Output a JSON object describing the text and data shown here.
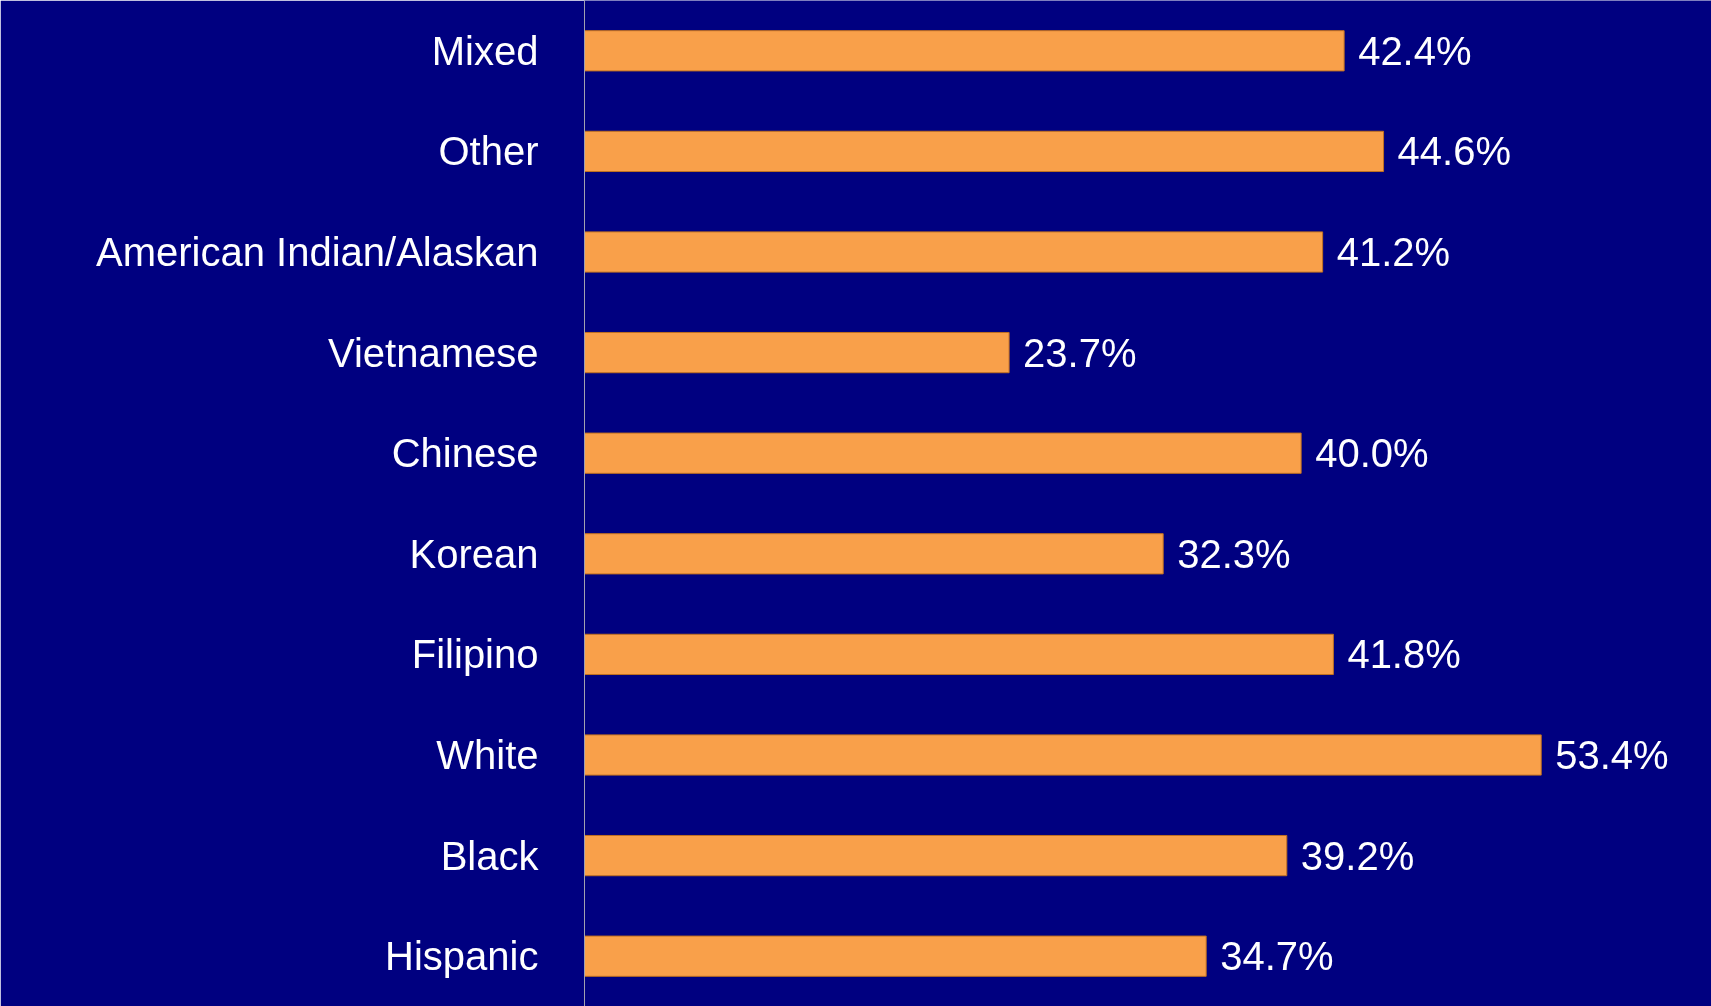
{
  "chart_data": {
    "type": "bar",
    "orientation": "horizontal",
    "categories": [
      "Mixed",
      "Other",
      "American Indian/Alaskan",
      "Vietnamese",
      "Chinese",
      "Korean",
      "Filipino",
      "White",
      "Black",
      "Hispanic"
    ],
    "values": [
      42.4,
      44.6,
      41.2,
      23.7,
      40.0,
      32.3,
      41.8,
      53.4,
      39.2,
      34.7
    ],
    "value_labels": [
      "42.4%",
      "44.6%",
      "41.2%",
      "23.7%",
      "40.0%",
      "32.3%",
      "41.8%",
      "53.4%",
      "39.2%",
      "34.7%"
    ],
    "color": "#f9a04a"
  }
}
